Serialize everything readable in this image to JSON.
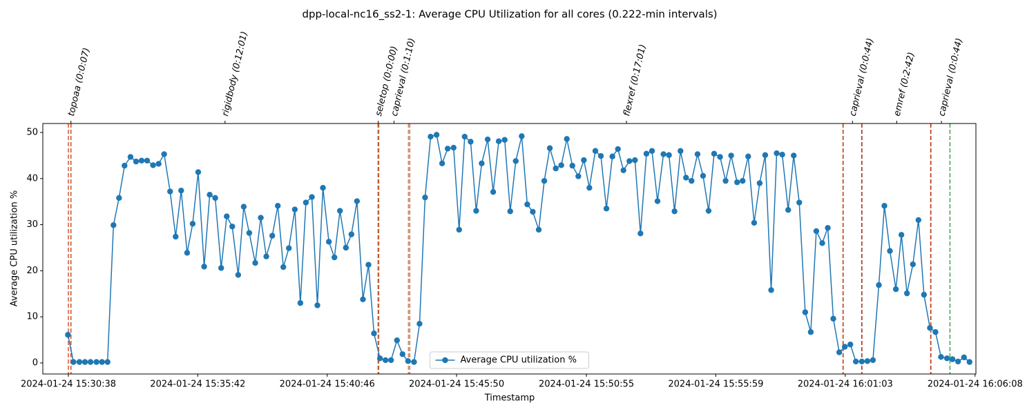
{
  "chart_data": {
    "type": "line",
    "title": "dpp-local-nc16_ss2-1: Average CPU Utilization for all cores (0.222-min intervals)",
    "x_label": "Timestamp",
    "y_label": "Average CPU utilization %",
    "legend": "lower center",
    "grid": false,
    "x": [
      "2024-01-24 15:30:37",
      "2024-01-24 15:30:50",
      "2024-01-24 15:31:04",
      "2024-01-24 15:31:17",
      "2024-01-24 15:31:30",
      "2024-01-24 15:31:44",
      "2024-01-24 15:31:57",
      "2024-01-24 15:32:10",
      "2024-01-24 15:32:24",
      "2024-01-24 15:32:37",
      "2024-01-24 15:32:50",
      "2024-01-24 15:33:04",
      "2024-01-24 15:33:17",
      "2024-01-24 15:33:30",
      "2024-01-24 15:33:43",
      "2024-01-24 15:33:57",
      "2024-01-24 15:34:10",
      "2024-01-24 15:34:23",
      "2024-01-24 15:34:37",
      "2024-01-24 15:34:50",
      "2024-01-24 15:35:03",
      "2024-01-24 15:35:17",
      "2024-01-24 15:35:30",
      "2024-01-24 15:35:43",
      "2024-01-24 15:35:57",
      "2024-01-24 15:36:10",
      "2024-01-24 15:36:23",
      "2024-01-24 15:36:37",
      "2024-01-24 15:36:50",
      "2024-01-24 15:37:03",
      "2024-01-24 15:37:17",
      "2024-01-24 15:37:30",
      "2024-01-24 15:37:43",
      "2024-01-24 15:37:57",
      "2024-01-24 15:38:10",
      "2024-01-24 15:38:23",
      "2024-01-24 15:38:37",
      "2024-01-24 15:38:50",
      "2024-01-24 15:39:03",
      "2024-01-24 15:39:16",
      "2024-01-24 15:39:30",
      "2024-01-24 15:39:43",
      "2024-01-24 15:39:56",
      "2024-01-24 15:40:10",
      "2024-01-24 15:40:23",
      "2024-01-24 15:40:36",
      "2024-01-24 15:40:50",
      "2024-01-24 15:41:03",
      "2024-01-24 15:41:16",
      "2024-01-24 15:41:30",
      "2024-01-24 15:41:43",
      "2024-01-24 15:41:56",
      "2024-01-24 15:42:10",
      "2024-01-24 15:42:23",
      "2024-01-24 15:42:36",
      "2024-01-24 15:42:50",
      "2024-01-24 15:43:03",
      "2024-01-24 15:43:16",
      "2024-01-24 15:43:30",
      "2024-01-24 15:43:43",
      "2024-01-24 15:43:56",
      "2024-01-24 15:44:10",
      "2024-01-24 15:44:23",
      "2024-01-24 15:44:36",
      "2024-01-24 15:44:49",
      "2024-01-24 15:45:03",
      "2024-01-24 15:45:16",
      "2024-01-24 15:45:29",
      "2024-01-24 15:45:43",
      "2024-01-24 15:45:56",
      "2024-01-24 15:46:09",
      "2024-01-24 15:46:23",
      "2024-01-24 15:46:36",
      "2024-01-24 15:46:49",
      "2024-01-24 15:47:03",
      "2024-01-24 15:47:16",
      "2024-01-24 15:47:29",
      "2024-01-24 15:47:43",
      "2024-01-24 15:47:56",
      "2024-01-24 15:48:09",
      "2024-01-24 15:48:23",
      "2024-01-24 15:48:36",
      "2024-01-24 15:48:49",
      "2024-01-24 15:49:03",
      "2024-01-24 15:49:16",
      "2024-01-24 15:49:29",
      "2024-01-24 15:49:43",
      "2024-01-24 15:49:56",
      "2024-01-24 15:50:09",
      "2024-01-24 15:50:22",
      "2024-01-24 15:50:36",
      "2024-01-24 15:50:49",
      "2024-01-24 15:51:02",
      "2024-01-24 15:51:16",
      "2024-01-24 15:51:29",
      "2024-01-24 15:51:42",
      "2024-01-24 15:51:56",
      "2024-01-24 15:52:09",
      "2024-01-24 15:52:22",
      "2024-01-24 15:52:36",
      "2024-01-24 15:52:49",
      "2024-01-24 15:53:02",
      "2024-01-24 15:53:16",
      "2024-01-24 15:53:29",
      "2024-01-24 15:53:42",
      "2024-01-24 15:53:56",
      "2024-01-24 15:54:09",
      "2024-01-24 15:54:22",
      "2024-01-24 15:54:36",
      "2024-01-24 15:54:49",
      "2024-01-24 15:55:02",
      "2024-01-24 15:55:16",
      "2024-01-24 15:55:29",
      "2024-01-24 15:55:42",
      "2024-01-24 15:55:55",
      "2024-01-24 15:56:09",
      "2024-01-24 15:56:22",
      "2024-01-24 15:56:35",
      "2024-01-24 15:56:49",
      "2024-01-24 15:57:02",
      "2024-01-24 15:57:15",
      "2024-01-24 15:57:29",
      "2024-01-24 15:57:42",
      "2024-01-24 15:57:55",
      "2024-01-24 15:58:09",
      "2024-01-24 15:58:22",
      "2024-01-24 15:58:35",
      "2024-01-24 15:58:49",
      "2024-01-24 15:59:02",
      "2024-01-24 15:59:15",
      "2024-01-24 15:59:29",
      "2024-01-24 15:59:42",
      "2024-01-24 15:59:55",
      "2024-01-24 16:00:09",
      "2024-01-24 16:00:22",
      "2024-01-24 16:00:35",
      "2024-01-24 16:00:49",
      "2024-01-24 16:01:02",
      "2024-01-24 16:01:15",
      "2024-01-24 16:01:28",
      "2024-01-24 16:01:42",
      "2024-01-24 16:01:55",
      "2024-01-24 16:02:08",
      "2024-01-24 16:02:22",
      "2024-01-24 16:02:35",
      "2024-01-24 16:02:48",
      "2024-01-24 16:03:02",
      "2024-01-24 16:03:15",
      "2024-01-24 16:03:28",
      "2024-01-24 16:03:42",
      "2024-01-24 16:03:55",
      "2024-01-24 16:04:08",
      "2024-01-24 16:04:22",
      "2024-01-24 16:04:35",
      "2024-01-24 16:04:48",
      "2024-01-24 16:05:02",
      "2024-01-24 16:05:15",
      "2024-01-24 16:05:28",
      "2024-01-24 16:05:42",
      "2024-01-24 16:05:55"
    ],
    "series": [
      {
        "name": "Average CPU utilization %",
        "color": "#1f77b4",
        "values": [
          6.1,
          0.2,
          0.2,
          0.2,
          0.2,
          0.2,
          0.2,
          0.2,
          29.9,
          35.8,
          42.8,
          44.7,
          43.7,
          43.9,
          43.9,
          42.9,
          43.2,
          45.3,
          37.2,
          27.4,
          37.4,
          23.9,
          30.2,
          41.4,
          20.9,
          36.5,
          35.8,
          20.6,
          31.8,
          29.6,
          19.1,
          33.9,
          28.2,
          21.7,
          31.5,
          23.1,
          27.6,
          34.1,
          20.8,
          24.9,
          33.3,
          13.0,
          34.8,
          36.0,
          12.5,
          38.0,
          26.3,
          22.9,
          33.0,
          25.0,
          27.9,
          35.1,
          13.8,
          21.3,
          6.4,
          1.0,
          0.6,
          0.6,
          4.9,
          1.9,
          0.4,
          0.2,
          8.5,
          35.9,
          49.1,
          49.5,
          43.3,
          46.5,
          46.7,
          28.9,
          49.1,
          48.0,
          33.0,
          43.3,
          48.5,
          37.1,
          48.1,
          48.4,
          32.9,
          43.8,
          49.2,
          34.4,
          32.8,
          28.9,
          39.5,
          46.6,
          42.2,
          42.9,
          48.6,
          42.8,
          40.5,
          44.0,
          38.0,
          46.0,
          44.9,
          33.5,
          44.8,
          46.4,
          41.8,
          43.8,
          44.0,
          28.1,
          45.4,
          46.0,
          35.1,
          45.3,
          45.1,
          32.9,
          46.0,
          40.2,
          39.5,
          45.3,
          40.6,
          33.0,
          45.4,
          44.7,
          39.5,
          45.0,
          39.2,
          39.5,
          44.8,
          30.4,
          39.0,
          45.1,
          15.8,
          45.5,
          45.2,
          33.2,
          45.0,
          34.8,
          11.0,
          6.7,
          28.6,
          26.0,
          29.3,
          9.6,
          2.3,
          3.5,
          4.0,
          0.3,
          0.3,
          0.4,
          0.6,
          16.9,
          34.1,
          24.3,
          16.0,
          27.8,
          15.1,
          21.4,
          31.0,
          14.8,
          7.6,
          6.7,
          1.3,
          1.0,
          0.8,
          0.3,
          1.2,
          0.2
        ]
      }
    ],
    "xlim": [
      "2024-01-24 15:29:38",
      "2024-01-24 16:06:10"
    ],
    "xticks": [
      "2024-01-24 15:30:38",
      "2024-01-24 15:35:42",
      "2024-01-24 15:40:46",
      "2024-01-24 15:45:50",
      "2024-01-24 15:50:55",
      "2024-01-24 15:55:59",
      "2024-01-24 16:01:03",
      "2024-01-24 16:06:08"
    ],
    "ylim": [
      -2.4,
      51.95
    ],
    "yticks": [
      0,
      10,
      20,
      30,
      40,
      50
    ],
    "annotations": [
      {
        "label": "topoaa (0:0:07)",
        "x": "2024-01-24 15:30:44"
      },
      {
        "label": "rigidbody (0:12:01)",
        "x": "2024-01-24 15:36:46"
      },
      {
        "label": "seletop (0:0:00)",
        "x": "2024-01-24 15:42:46"
      },
      {
        "label": "caprieval (0:1:10)",
        "x": "2024-01-24 15:43:23"
      },
      {
        "label": "flexref (0:17:01)",
        "x": "2024-01-24 15:52:29"
      },
      {
        "label": "caprieval (0:0:44)",
        "x": "2024-01-24 16:01:20"
      },
      {
        "label": "emref (0:2:42)",
        "x": "2024-01-24 16:03:04"
      },
      {
        "label": "caprieval (0:0:44)",
        "x": "2024-01-24 16:04:49"
      }
    ],
    "vlines": [
      {
        "x": "2024-01-24 15:30:38",
        "color": "#e0705a"
      },
      {
        "x": "2024-01-24 15:30:44",
        "color": "#c8683c"
      },
      {
        "x": "2024-01-24 15:42:46",
        "color": "#a83010"
      },
      {
        "x": "2024-01-24 15:42:47",
        "color": "#c8683c"
      },
      {
        "x": "2024-01-24 15:43:57",
        "color": "#d09070"
      },
      {
        "x": "2024-01-24 15:44:00",
        "color": "#d09070"
      },
      {
        "x": "2024-01-24 16:00:58",
        "color": "#c0502a"
      },
      {
        "x": "2024-01-24 16:01:42",
        "color": "#b04030"
      },
      {
        "x": "2024-01-24 16:04:24",
        "color": "#c04020"
      },
      {
        "x": "2024-01-24 16:05:09",
        "color": "#60b060"
      }
    ]
  }
}
